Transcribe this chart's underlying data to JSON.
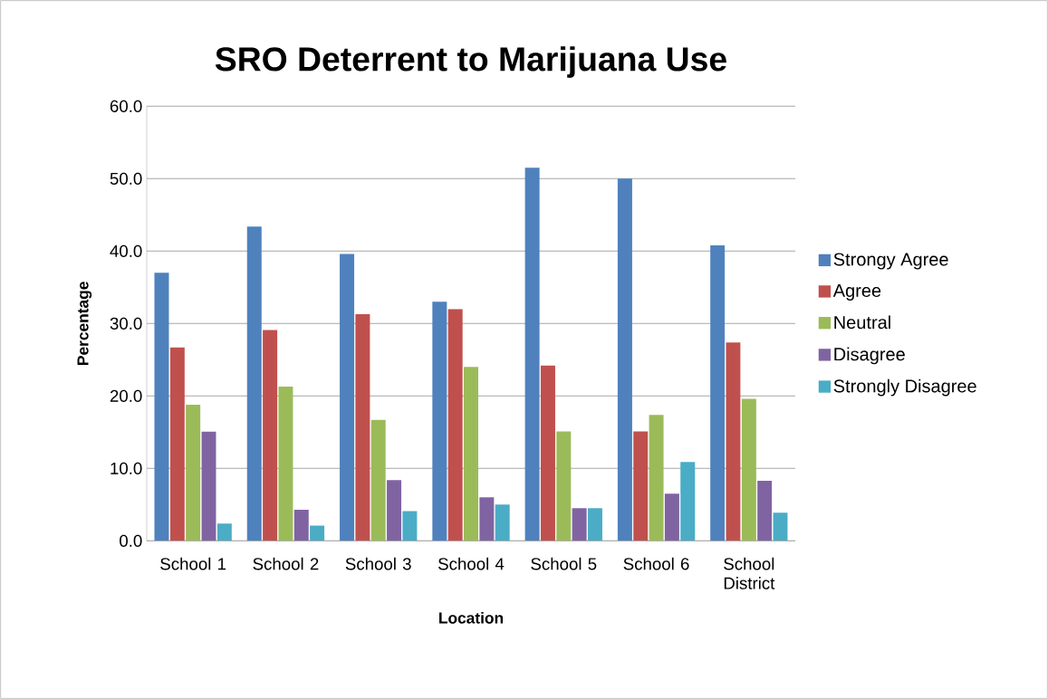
{
  "chart_data": {
    "type": "bar",
    "title": "SRO Deterrent to Marijuana Use",
    "xlabel": "Location",
    "ylabel": "Percentage",
    "categories": [
      "School 1",
      "School 2",
      "School 3",
      "School 4",
      "School 5",
      "School 6",
      "School District"
    ],
    "series": [
      {
        "name": "Strongy Agree",
        "color": "#4f81bd",
        "values": [
          37.0,
          43.4,
          39.6,
          33.0,
          51.5,
          50.0,
          40.8
        ]
      },
      {
        "name": "Agree",
        "color": "#c0504d",
        "values": [
          26.7,
          29.1,
          31.3,
          32.0,
          24.2,
          15.1,
          27.4
        ]
      },
      {
        "name": "Neutral",
        "color": "#9bbb59",
        "values": [
          18.8,
          21.3,
          16.7,
          24.0,
          15.1,
          17.4,
          19.6
        ]
      },
      {
        "name": "Disagree",
        "color": "#8064a2",
        "values": [
          15.1,
          4.3,
          8.4,
          6.0,
          4.5,
          6.5,
          8.3
        ]
      },
      {
        "name": "Strongly Disagree",
        "color": "#4bacc6",
        "values": [
          2.4,
          2.1,
          4.1,
          5.0,
          4.5,
          10.9,
          3.9
        ]
      }
    ],
    "ylim": [
      0,
      60
    ],
    "yticks": [
      {
        "value": 0,
        "label": "0.0"
      },
      {
        "value": 10,
        "label": "10.0"
      },
      {
        "value": 20,
        "label": "20.0"
      },
      {
        "value": 30,
        "label": "30.0"
      },
      {
        "value": 40,
        "label": "40.0"
      },
      {
        "value": 50,
        "label": "50.0"
      },
      {
        "value": 60,
        "label": "60.0"
      }
    ],
    "grid": "y",
    "legend": "right"
  }
}
